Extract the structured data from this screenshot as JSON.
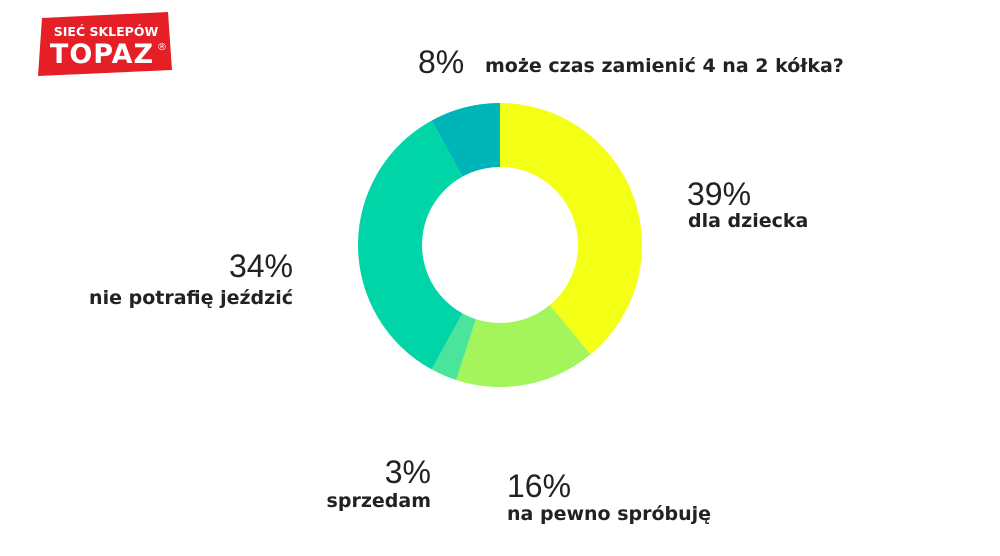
{
  "logo": {
    "line1": "SIEĆ SKLEPÓW",
    "line2": "TOPAZ",
    "mark": "®",
    "background_color": "#e41f26",
    "text_color": "#ffffff"
  },
  "chart_data": {
    "type": "pie",
    "donut": true,
    "start_angle": "12 o'clock",
    "direction": "clockwise",
    "slices": [
      {
        "key": "dla_dziecka",
        "label": "dla dziecka",
        "percent_label": "39%",
        "value": 39,
        "color": "#f3ff14"
      },
      {
        "key": "na_pewno",
        "label": "na pewno spróbuję",
        "percent_label": "16%",
        "value": 16,
        "color": "#a3f55b"
      },
      {
        "key": "sprzedam",
        "label": "sprzedam",
        "percent_label": "3%",
        "value": 3,
        "color": "#4ae59a"
      },
      {
        "key": "nie_potrafie",
        "label": "nie potrafię jeździć",
        "percent_label": "34%",
        "value": 34,
        "color": "#00d5a8"
      },
      {
        "key": "moze_czas",
        "label": "może czas zamienić 4 na 2 kółka?",
        "percent_label": "8%",
        "value": 8,
        "color": "#00b5b8"
      }
    ]
  }
}
